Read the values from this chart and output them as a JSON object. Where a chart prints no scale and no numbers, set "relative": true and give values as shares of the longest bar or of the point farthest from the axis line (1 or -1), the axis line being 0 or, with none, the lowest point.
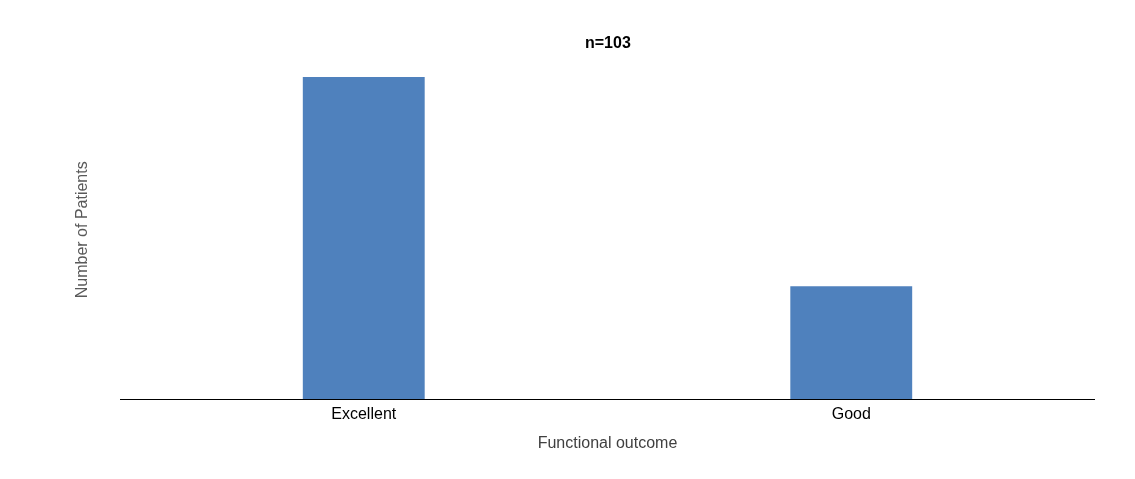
{
  "chart_data": {
    "type": "bar",
    "relative": true,
    "ylabel": "Number of Patients",
    "xlabel": "Functional outcome",
    "categories": [
      "Excellent",
      "Good"
    ],
    "values": [
      1,
      0.35
    ],
    "color": "#4f81bd",
    "annotations": [
      "n=103"
    ]
  }
}
